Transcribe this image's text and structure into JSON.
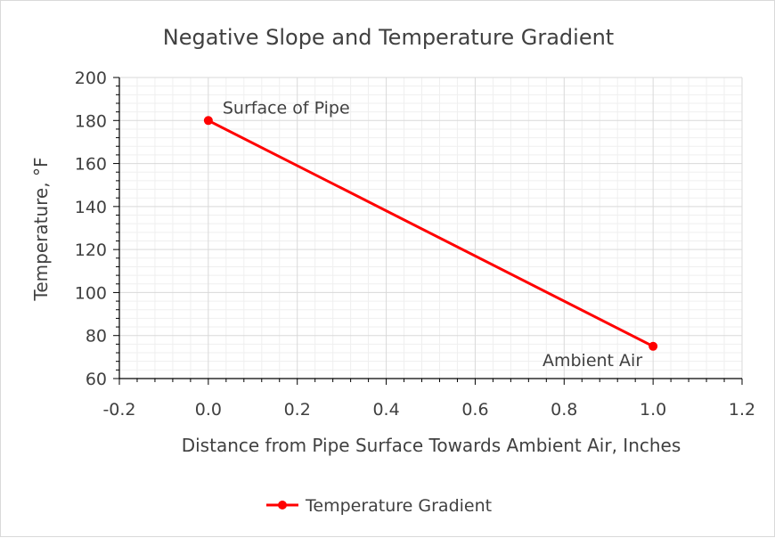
{
  "chart_data": {
    "type": "scatter",
    "title": "Negative Slope and Temperature Gradient",
    "xlabel": "Distance from Pipe Surface Towards Ambient Air, Inches",
    "ylabel": "Temperature, °F",
    "xlim": [
      -0.2,
      1.2
    ],
    "ylim": [
      60,
      200
    ],
    "x_ticks": [
      -0.2,
      0.0,
      0.2,
      0.4,
      0.6,
      0.8,
      1.0,
      1.2
    ],
    "x_tick_labels": [
      "-0.2",
      "0.0",
      "0.2",
      "0.4",
      "0.6",
      "0.8",
      "1.0",
      "1.2"
    ],
    "y_ticks": [
      60,
      80,
      100,
      120,
      140,
      160,
      180,
      200
    ],
    "y_tick_labels": [
      "60",
      "80",
      "100",
      "120",
      "140",
      "160",
      "180",
      "200"
    ],
    "grid": true,
    "legend_position": "bottom",
    "series": [
      {
        "name": "Temperature Gradient",
        "color": "#ff0000",
        "marker": "circle",
        "line": true,
        "x": [
          0.0,
          1.0
        ],
        "y": [
          180,
          75
        ]
      }
    ],
    "annotations": [
      {
        "text": "Surface of Pipe",
        "x": 0.0,
        "y": 180
      },
      {
        "text": "Ambient Air",
        "x": 1.0,
        "y": 75
      }
    ]
  }
}
